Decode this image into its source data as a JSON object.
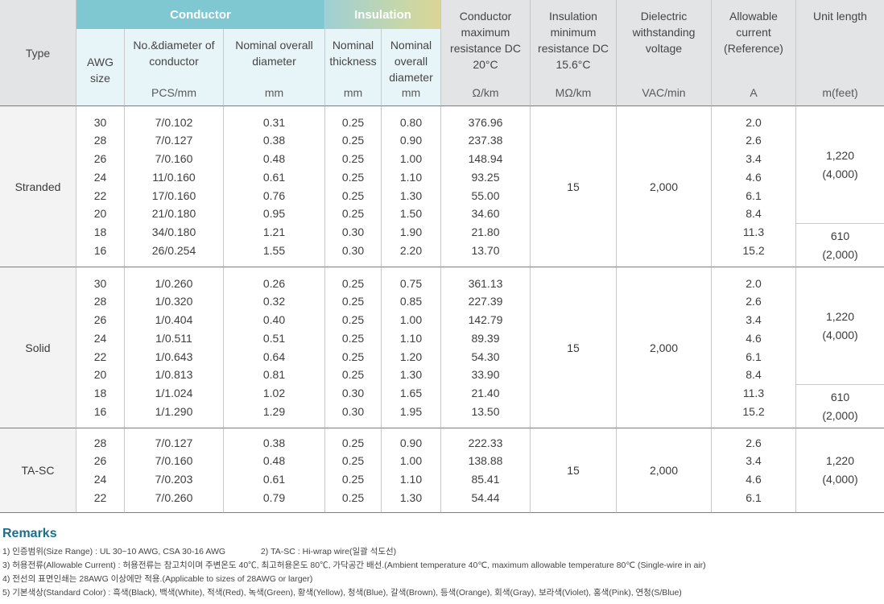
{
  "header": {
    "type": "Type",
    "group_conductor": "Conductor",
    "group_insulation": "Insulation",
    "awg": "AWG size",
    "no_diameter": "No.&diameter of conductor",
    "no_diameter_unit": "PCS/mm",
    "nom_overall": "Nominal overall diameter",
    "nom_overall_unit": "mm",
    "nom_thickness": "Nominal thickness",
    "nom_thickness_unit": "mm",
    "ins_overall": "Nominal overall diameter",
    "ins_overall_unit": "mm",
    "cond_resistance": "Conductor maximum resistance DC 20°C",
    "cond_resistance_unit": "Ω/km",
    "ins_resistance": "Insulation minimum resistance DC 15.6°C",
    "ins_resistance_unit": "MΩ/km",
    "dielectric": "Dielectric withstanding voltage",
    "dielectric_unit": "VAC/min",
    "allowable": "Allowable current (Reference)",
    "allowable_unit": "A",
    "unit_length": "Unit length",
    "unit_length_unit": "m(feet)"
  },
  "groups": {
    "stranded": {
      "type": "Stranded",
      "awg": [
        "30",
        "28",
        "26",
        "24",
        "22",
        "20",
        "18",
        "16"
      ],
      "conductor": [
        "7/0.102",
        "7/0.127",
        "7/0.160",
        "11/0.160",
        "17/0.160",
        "21/0.180",
        "34/0.180",
        "26/0.254"
      ],
      "overall": [
        "0.31",
        "0.38",
        "0.48",
        "0.61",
        "0.76",
        "0.95",
        "1.21",
        "1.55"
      ],
      "thickness": [
        "0.25",
        "0.25",
        "0.25",
        "0.25",
        "0.25",
        "0.25",
        "0.30",
        "0.30"
      ],
      "ins_overall": [
        "0.80",
        "0.90",
        "1.00",
        "1.10",
        "1.30",
        "1.50",
        "1.90",
        "2.20"
      ],
      "resistance": [
        "376.96",
        "237.38",
        "148.94",
        "93.25",
        "55.00",
        "34.60",
        "21.80",
        "13.70"
      ],
      "ins_resistance": "15",
      "dielectric": "2,000",
      "allowable": [
        "2.0",
        "2.6",
        "3.4",
        "4.6",
        "6.1",
        "8.4",
        "11.3",
        "15.2"
      ],
      "length_a": "1,220",
      "length_a_ft": "(4,000)",
      "length_b": "610",
      "length_b_ft": "(2,000)"
    },
    "solid": {
      "type": "Solid",
      "awg": [
        "30",
        "28",
        "26",
        "24",
        "22",
        "20",
        "18",
        "16"
      ],
      "conductor": [
        "1/0.260",
        "1/0.320",
        "1/0.404",
        "1/0.511",
        "1/0.643",
        "1/0.813",
        "1/1.024",
        "1/1.290"
      ],
      "overall": [
        "0.26",
        "0.32",
        "0.40",
        "0.51",
        "0.64",
        "0.81",
        "1.02",
        "1.29"
      ],
      "thickness": [
        "0.25",
        "0.25",
        "0.25",
        "0.25",
        "0.25",
        "0.25",
        "0.30",
        "0.30"
      ],
      "ins_overall": [
        "0.75",
        "0.85",
        "1.00",
        "1.10",
        "1.20",
        "1.30",
        "1.65",
        "1.95"
      ],
      "resistance": [
        "361.13",
        "227.39",
        "142.79",
        "89.39",
        "54.30",
        "33.90",
        "21.40",
        "13.50"
      ],
      "ins_resistance": "15",
      "dielectric": "2,000",
      "allowable": [
        "2.0",
        "2.6",
        "3.4",
        "4.6",
        "6.1",
        "8.4",
        "11.3",
        "15.2"
      ],
      "length_a": "1,220",
      "length_a_ft": "(4,000)",
      "length_b": "610",
      "length_b_ft": "(2,000)"
    },
    "tasc": {
      "type": "TA-SC",
      "awg": [
        "28",
        "26",
        "24",
        "22"
      ],
      "conductor": [
        "7/0.127",
        "7/0.160",
        "7/0.203",
        "7/0.260"
      ],
      "overall": [
        "0.38",
        "0.48",
        "0.61",
        "0.79"
      ],
      "thickness": [
        "0.25",
        "0.25",
        "0.25",
        "0.25"
      ],
      "ins_overall": [
        "0.90",
        "1.00",
        "1.10",
        "1.30"
      ],
      "resistance": [
        "222.33",
        "138.88",
        "85.41",
        "54.44"
      ],
      "ins_resistance": "15",
      "dielectric": "2,000",
      "allowable": [
        "2.6",
        "3.4",
        "4.6",
        "6.1"
      ],
      "length_a": "1,220",
      "length_a_ft": "(4,000)"
    }
  },
  "remarks": {
    "title": "Remarks",
    "line1a": "1) 인증범위(Size Range) : UL 30~10 AWG, CSA 30-16 AWG",
    "line1b": "2) TA-SC : Hi-wrap wire(일괄 석도선)",
    "line2": "3) 허용전류(Allowable Current) : 허용전류는 참고치이며 주변온도 40℃, 최고허용온도 80℃, 가닥공간 배선.(Ambient temperature 40℃, maximum allowable temperature 80℃ (Single-wire in air)",
    "line3": "4) 전선의 표면인쇄는 28AWG 이상에만 적용.(Applicable to sizes of 28AWG or larger)",
    "line4": "5) 기본색상(Standard Color) : 흑색(Black), 백색(White), 적색(Red), 녹색(Green), 황색(Yellow), 청색(Blue), 갈색(Brown), 등색(Orange), 회색(Gray), 보라색(Violet), 홍색(Pink), 연청(S/Blue)"
  }
}
